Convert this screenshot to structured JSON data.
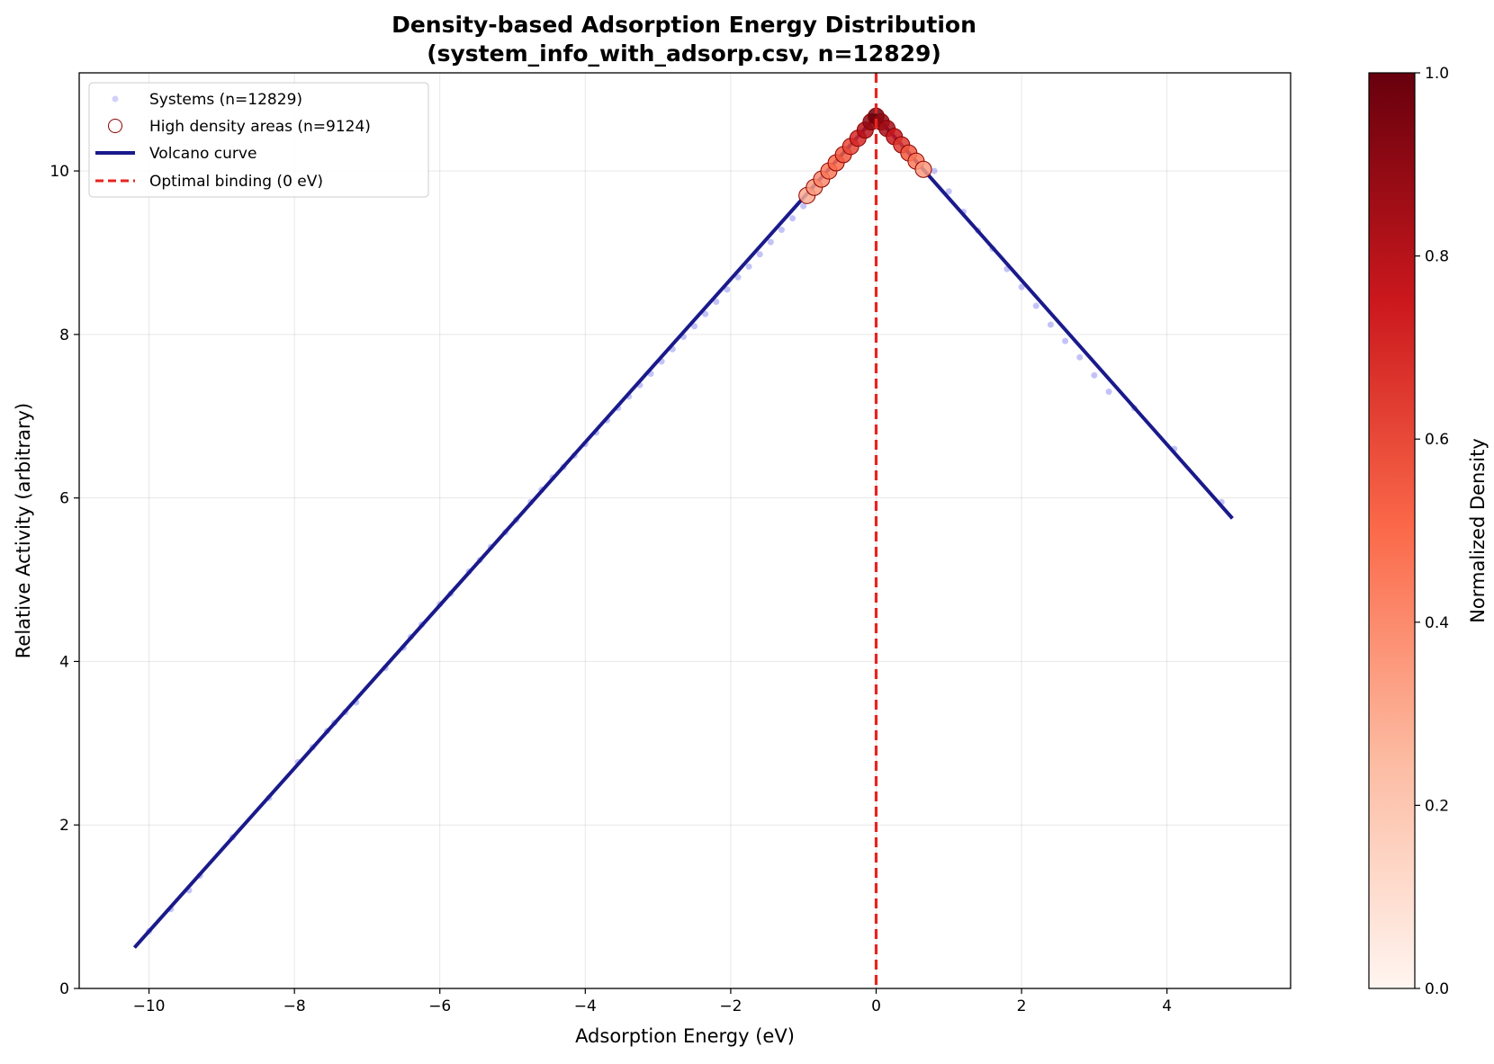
{
  "chart_data": {
    "type": "scatter",
    "title": "Density-based Adsorption Energy Distribution",
    "subtitle": "(system_info_with_adsorp.csv, n=12829)",
    "xlabel": "Adsorption Energy (eV)",
    "ylabel": "Relative Activity (arbitrary)",
    "xlim": [
      -10.96,
      5.7
    ],
    "ylim": [
      0,
      11.2
    ],
    "xticks": [
      -10,
      -8,
      -6,
      -4,
      -2,
      0,
      2,
      4
    ],
    "xtick_labels": [
      "−10",
      "−8",
      "−6",
      "−4",
      "−2",
      "0",
      "2",
      "4"
    ],
    "yticks": [
      0,
      2,
      4,
      6,
      8,
      10
    ],
    "ytick_labels": [
      "0",
      "2",
      "4",
      "6",
      "8",
      "10"
    ],
    "grid": true,
    "legend_position": "top-left",
    "colorbar": {
      "label": "Normalized Density",
      "colormap": "Reds",
      "range": [
        0,
        1
      ],
      "ticks": [
        "0.0",
        "0.2",
        "0.4",
        "0.6",
        "0.8",
        "1.0"
      ]
    },
    "series": [
      {
        "name": "Systems (n=12829)",
        "kind": "scatter",
        "color": "#7b7bf0",
        "points": [
          [
            -10.0,
            0.7
          ],
          [
            -9.7,
            0.97
          ],
          [
            -9.45,
            1.2
          ],
          [
            -9.3,
            1.38
          ],
          [
            -8.85,
            1.85
          ],
          [
            -8.35,
            2.33
          ],
          [
            -7.95,
            2.77
          ],
          [
            -7.75,
            2.95
          ],
          [
            -7.55,
            3.15
          ],
          [
            -7.45,
            3.25
          ],
          [
            -7.3,
            3.38
          ],
          [
            -7.15,
            3.5
          ],
          [
            -6.75,
            3.92
          ],
          [
            -6.5,
            4.17
          ],
          [
            -6.4,
            4.3
          ],
          [
            -6.25,
            4.45
          ],
          [
            -6.0,
            4.7
          ],
          [
            -5.85,
            4.83
          ],
          [
            -5.6,
            5.1
          ],
          [
            -5.45,
            5.24
          ],
          [
            -5.3,
            5.4
          ],
          [
            -5.1,
            5.58
          ],
          [
            -4.95,
            5.73
          ],
          [
            -4.75,
            5.95
          ],
          [
            -4.6,
            6.1
          ],
          [
            -4.45,
            6.25
          ],
          [
            -4.3,
            6.38
          ],
          [
            -4.15,
            6.52
          ],
          [
            -4.0,
            6.66
          ],
          [
            -3.85,
            6.8
          ],
          [
            -3.7,
            6.95
          ],
          [
            -3.55,
            7.1
          ],
          [
            -3.4,
            7.24
          ],
          [
            -3.25,
            7.38
          ],
          [
            -3.1,
            7.52
          ],
          [
            -2.95,
            7.67
          ],
          [
            -2.8,
            7.82
          ],
          [
            -2.65,
            7.97
          ],
          [
            -2.5,
            8.1
          ],
          [
            -2.35,
            8.25
          ],
          [
            -2.2,
            8.4
          ],
          [
            -2.05,
            8.55
          ],
          [
            -1.9,
            8.7
          ],
          [
            -1.75,
            8.83
          ],
          [
            -1.6,
            8.98
          ],
          [
            -1.45,
            9.13
          ],
          [
            -1.3,
            9.28
          ],
          [
            -1.15,
            9.42
          ],
          [
            -1.0,
            9.57
          ],
          [
            0.8,
            10.0
          ],
          [
            1.0,
            9.75
          ],
          [
            1.2,
            9.5
          ],
          [
            1.4,
            9.27
          ],
          [
            1.6,
            9.05
          ],
          [
            1.8,
            8.8
          ],
          [
            2.0,
            8.58
          ],
          [
            2.2,
            8.35
          ],
          [
            2.4,
            8.12
          ],
          [
            2.6,
            7.92
          ],
          [
            2.8,
            7.72
          ],
          [
            3.0,
            7.5
          ],
          [
            3.2,
            7.3
          ],
          [
            3.55,
            7.1
          ],
          [
            4.1,
            6.6
          ],
          [
            4.75,
            5.95
          ]
        ]
      },
      {
        "name": "High density areas (n=9124)",
        "kind": "scatter",
        "edgecolor": "#8b0000",
        "points": [
          [
            -0.95,
            9.7
          ],
          [
            -0.85,
            9.8
          ],
          [
            -0.75,
            9.9
          ],
          [
            -0.65,
            10.0
          ],
          [
            -0.55,
            10.1
          ],
          [
            -0.45,
            10.2
          ],
          [
            -0.35,
            10.3
          ],
          [
            -0.25,
            10.4
          ],
          [
            -0.15,
            10.5
          ],
          [
            -0.07,
            10.6
          ],
          [
            0.0,
            10.67
          ],
          [
            0.07,
            10.6
          ],
          [
            0.15,
            10.52
          ],
          [
            0.25,
            10.42
          ],
          [
            0.35,
            10.32
          ],
          [
            0.45,
            10.22
          ],
          [
            0.55,
            10.12
          ],
          [
            0.65,
            10.02
          ]
        ],
        "density": [
          0.3,
          0.35,
          0.4,
          0.45,
          0.5,
          0.55,
          0.6,
          0.7,
          0.8,
          0.9,
          1.0,
          0.9,
          0.85,
          0.75,
          0.65,
          0.55,
          0.45,
          0.35
        ]
      },
      {
        "name": "Volcano curve",
        "kind": "line",
        "color": "#1a1a8c",
        "x": [
          -10.2,
          0.0,
          4.9
        ],
        "y": [
          0.5,
          10.67,
          5.75
        ]
      },
      {
        "name": "Optimal binding (0 eV)",
        "kind": "vline",
        "color": "#e8231f",
        "x": 0
      }
    ]
  }
}
